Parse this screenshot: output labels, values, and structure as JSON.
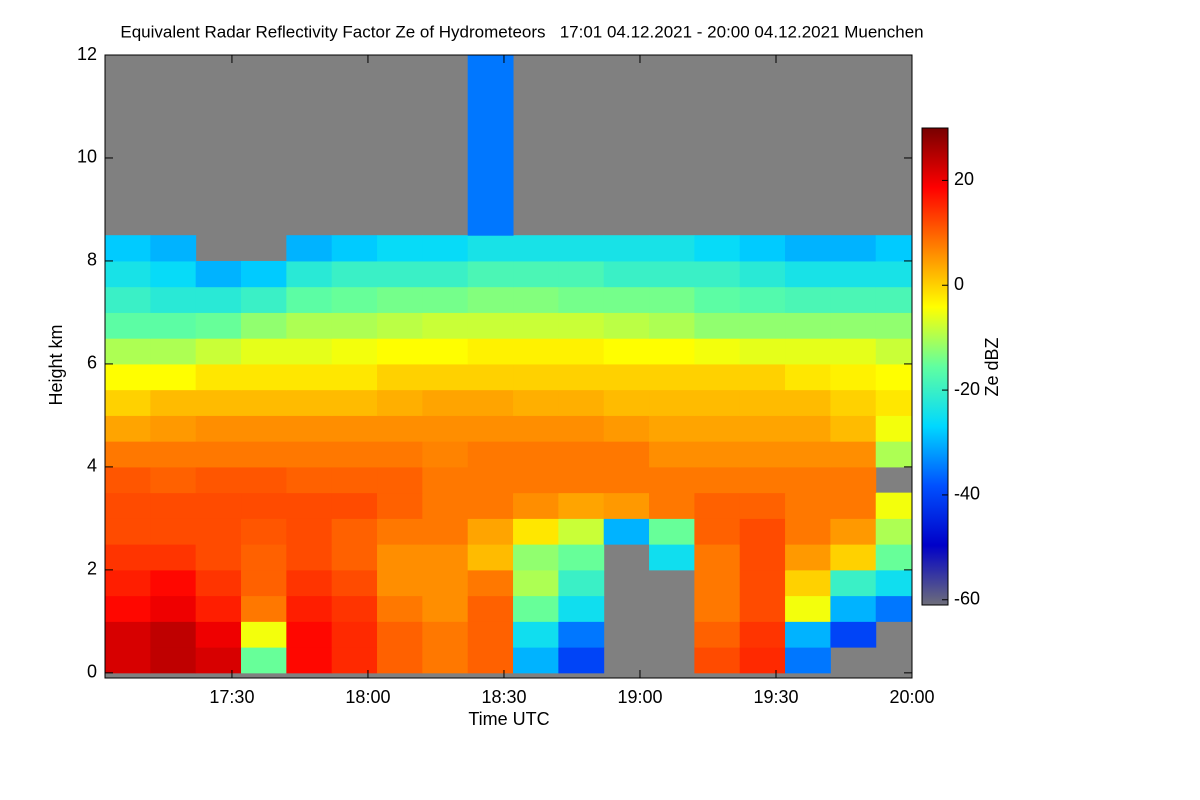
{
  "chart_data": {
    "type": "heatmap",
    "title": "Equivalent Radar Reflectivity Factor Ze of Hydrometeors   17:01 04.12.2021 - 20:00 04.12.2021 Muenchen",
    "x_label": "Time UTC",
    "y_label": "Height km",
    "colorbar_label": "Ze dBZ",
    "xlim": [
      1022,
      1200
    ],
    "xticks": [
      {
        "value": 1050,
        "label": "17:30"
      },
      {
        "value": 1080,
        "label": "18:00"
      },
      {
        "value": 1110,
        "label": "18:30"
      },
      {
        "value": 1140,
        "label": "19:00"
      },
      {
        "value": 1170,
        "label": "19:30"
      },
      {
        "value": 1200,
        "label": "20:00"
      }
    ],
    "ylim": [
      -0.1,
      12
    ],
    "yticks": [
      0,
      2,
      4,
      6,
      8,
      10,
      12
    ],
    "zlim": [
      -61,
      30
    ],
    "zticks": [
      -60,
      -40,
      -20,
      0,
      20
    ],
    "colormap": [
      "#6e6e7a",
      "#0000c8",
      "#0050ff",
      "#00d8ff",
      "#60ffa0",
      "#ffff00",
      "#ff8000",
      "#ff0000",
      "#780000"
    ],
    "missing_color": "#808080",
    "x": [
      1022,
      1032,
      1042,
      1052,
      1062,
      1072,
      1082,
      1092,
      1102,
      1112,
      1122,
      1132,
      1142,
      1152,
      1162,
      1172,
      1182,
      1192
    ],
    "y": [
      0,
      0.5,
      1,
      1.5,
      2,
      2.5,
      3,
      3.5,
      4,
      4.5,
      5,
      5.5,
      6,
      6.5,
      7,
      7.5,
      8,
      8.5
    ],
    "z": [
      [
        22,
        24,
        22,
        -15,
        18,
        15,
        10,
        8,
        10,
        -30,
        -40,
        null,
        null,
        12,
        15,
        -35,
        null,
        null
      ],
      [
        22,
        24,
        20,
        -5,
        18,
        15,
        10,
        8,
        10,
        -25,
        -35,
        null,
        null,
        10,
        14,
        -30,
        -40,
        null
      ],
      [
        18,
        20,
        16,
        8,
        16,
        14,
        8,
        6,
        10,
        -15,
        -25,
        null,
        null,
        8,
        12,
        -5,
        -30,
        -35
      ],
      [
        16,
        18,
        14,
        10,
        14,
        12,
        6,
        6,
        8,
        -10,
        -20,
        null,
        null,
        8,
        12,
        0,
        -20,
        -25
      ],
      [
        14,
        14,
        12,
        10,
        12,
        10,
        6,
        6,
        2,
        -12,
        -15,
        null,
        -25,
        8,
        12,
        5,
        0,
        -15
      ],
      [
        12,
        12,
        12,
        11,
        12,
        10,
        8,
        8,
        4,
        -2,
        -8,
        -30,
        -15,
        10,
        12,
        8,
        5,
        -10
      ],
      [
        12,
        12,
        12,
        12,
        12,
        12,
        10,
        8,
        8,
        6,
        4,
        5,
        8,
        10,
        10,
        8,
        8,
        -5
      ],
      [
        11,
        10,
        11,
        11,
        10,
        10,
        10,
        8,
        8,
        8,
        8,
        8,
        8,
        8,
        8,
        8,
        8,
        null
      ],
      [
        8,
        8,
        8,
        8,
        8,
        8,
        8,
        7,
        8,
        8,
        8,
        8,
        6,
        6,
        6,
        6,
        6,
        -10
      ],
      [
        4,
        5,
        6,
        6,
        6,
        6,
        6,
        6,
        6,
        6,
        6,
        5,
        4,
        4,
        4,
        4,
        2,
        -5
      ],
      [
        0,
        2,
        2,
        2,
        2,
        2,
        3,
        4,
        4,
        3,
        3,
        2,
        2,
        2,
        2,
        2,
        0,
        -2
      ],
      [
        -4,
        -4,
        -2,
        -2,
        -2,
        -2,
        0,
        0,
        0,
        0,
        0,
        0,
        0,
        0,
        0,
        -2,
        -3,
        -4
      ],
      [
        -10,
        -10,
        -8,
        -6,
        -6,
        -5,
        -4,
        -4,
        -3,
        -3,
        -3,
        -4,
        -4,
        -5,
        -6,
        -6,
        -6,
        -8
      ],
      [
        -16,
        -16,
        -15,
        -12,
        -10,
        -10,
        -9,
        -8,
        -8,
        -8,
        -8,
        -9,
        -10,
        -12,
        -12,
        -12,
        -12,
        -12
      ],
      [
        -20,
        -22,
        -22,
        -20,
        -16,
        -15,
        -14,
        -14,
        -13,
        -13,
        -14,
        -14,
        -14,
        -16,
        -17,
        -18,
        -18,
        -18
      ],
      [
        -24,
        -26,
        -30,
        -28,
        -22,
        -20,
        -20,
        -20,
        -18,
        -18,
        -18,
        -20,
        -20,
        -20,
        -22,
        -24,
        -24,
        -24
      ],
      [
        -28,
        -30,
        null,
        null,
        -30,
        -28,
        -26,
        -26,
        -24,
        -24,
        -24,
        -24,
        -24,
        -26,
        -28,
        -30,
        -30,
        -28
      ],
      [
        null,
        null,
        null,
        null,
        null,
        null,
        null,
        null,
        -35,
        null,
        null,
        null,
        null,
        null,
        null,
        null,
        null,
        null
      ]
    ]
  }
}
